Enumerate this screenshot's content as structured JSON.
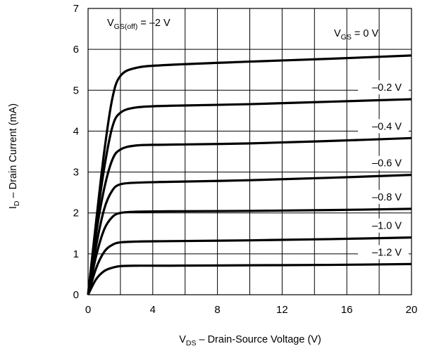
{
  "chart_data": {
    "type": "line",
    "title": "",
    "xlabel": {
      "main": "V",
      "sub": "DS",
      "rest": " – Drain-Source Voltage (V)"
    },
    "ylabel": {
      "main": "I",
      "sub": "D",
      "rest": " – Drain Current (mA)"
    },
    "xlim": [
      0,
      20
    ],
    "ylim": [
      0,
      7
    ],
    "xticks": [
      "0",
      "4",
      "8",
      "12",
      "16",
      "20"
    ],
    "yticks": [
      "0",
      "1",
      "2",
      "3",
      "4",
      "5",
      "6",
      "7"
    ],
    "grid": true,
    "annotation": {
      "main": "V",
      "sub": "GS(off)",
      "rest": " = –2 V"
    },
    "series_header": {
      "main": "V",
      "sub": "GS",
      "rest": " = 0 V"
    },
    "series": [
      {
        "name": "0 V",
        "label": "",
        "sat": 5.6,
        "end": 5.85,
        "knee": 1.7,
        "curve": [
          [
            0,
            0
          ],
          [
            0.5,
            1.8
          ],
          [
            1,
            3.5
          ],
          [
            1.5,
            4.8
          ],
          [
            2,
            5.35
          ],
          [
            3,
            5.55
          ],
          [
            5,
            5.62
          ],
          [
            10,
            5.7
          ],
          [
            15,
            5.77
          ],
          [
            20,
            5.85
          ]
        ]
      },
      {
        "name": "-0.2 V",
        "label": "–0.2 V",
        "curve": [
          [
            0,
            0
          ],
          [
            0.5,
            1.7
          ],
          [
            1,
            3.1
          ],
          [
            1.5,
            4.1
          ],
          [
            2,
            4.45
          ],
          [
            3,
            4.58
          ],
          [
            5,
            4.62
          ],
          [
            10,
            4.66
          ],
          [
            15,
            4.72
          ],
          [
            20,
            4.78
          ]
        ]
      },
      {
        "name": "-0.4 V",
        "label": "–0.4 V",
        "curve": [
          [
            0,
            0
          ],
          [
            0.5,
            1.5
          ],
          [
            1,
            2.6
          ],
          [
            1.5,
            3.3
          ],
          [
            2,
            3.55
          ],
          [
            3,
            3.65
          ],
          [
            5,
            3.67
          ],
          [
            10,
            3.7
          ],
          [
            15,
            3.76
          ],
          [
            20,
            3.83
          ]
        ]
      },
      {
        "name": "-0.6 V",
        "label": "–0.6 V",
        "curve": [
          [
            0,
            0
          ],
          [
            0.5,
            1.2
          ],
          [
            1,
            2.1
          ],
          [
            1.5,
            2.55
          ],
          [
            2,
            2.7
          ],
          [
            3,
            2.74
          ],
          [
            5,
            2.76
          ],
          [
            10,
            2.8
          ],
          [
            15,
            2.86
          ],
          [
            20,
            2.93
          ]
        ]
      },
      {
        "name": "-0.8 V",
        "label": "–0.8 V",
        "curve": [
          [
            0,
            0
          ],
          [
            0.5,
            0.95
          ],
          [
            1,
            1.6
          ],
          [
            1.5,
            1.9
          ],
          [
            2,
            2.0
          ],
          [
            3,
            2.03
          ],
          [
            5,
            2.04
          ],
          [
            10,
            2.05
          ],
          [
            15,
            2.07
          ],
          [
            20,
            2.1
          ]
        ]
      },
      {
        "name": "-1.0 V",
        "label": "–1.0 V",
        "curve": [
          [
            0,
            0
          ],
          [
            0.5,
            0.65
          ],
          [
            1,
            1.05
          ],
          [
            1.5,
            1.22
          ],
          [
            2,
            1.28
          ],
          [
            3,
            1.3
          ],
          [
            5,
            1.31
          ],
          [
            10,
            1.33
          ],
          [
            15,
            1.36
          ],
          [
            20,
            1.4
          ]
        ]
      },
      {
        "name": "-1.2 V",
        "label": "–1.2 V",
        "curve": [
          [
            0,
            0
          ],
          [
            0.5,
            0.38
          ],
          [
            1,
            0.58
          ],
          [
            1.5,
            0.66
          ],
          [
            2,
            0.7
          ],
          [
            3,
            0.71
          ],
          [
            5,
            0.71
          ],
          [
            10,
            0.72
          ],
          [
            15,
            0.73
          ],
          [
            20,
            0.75
          ]
        ]
      }
    ]
  }
}
